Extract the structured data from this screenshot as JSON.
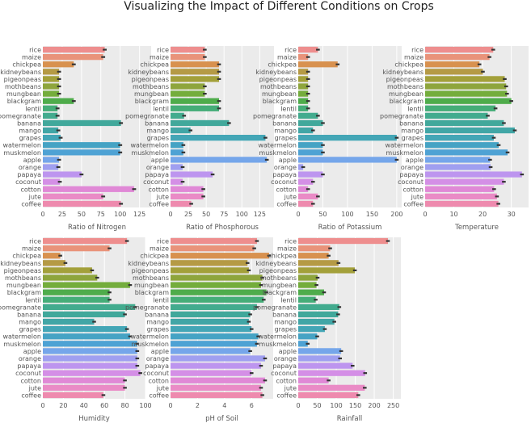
{
  "chart_data": {
    "type": "bar",
    "orientation": "horizontal",
    "title": "Visualizing the Impact of Different Conditions on Crops",
    "categories": [
      "rice",
      "maize",
      "chickpea",
      "kidneybeans",
      "pigeonpeas",
      "mothbeans",
      "mungbean",
      "blackgram",
      "lentil",
      "pomegranate",
      "banana",
      "mango",
      "grapes",
      "watermelon",
      "muskmelon",
      "apple",
      "orange",
      "papaya",
      "coconut",
      "cotton",
      "jute",
      "coffee"
    ],
    "colors": [
      "#ee8e8e",
      "#e9937a",
      "#d8914f",
      "#b59a45",
      "#a3a03a",
      "#8ea53c",
      "#74ad3c",
      "#4fac4b",
      "#45ad78",
      "#42ab8e",
      "#41a89b",
      "#41a6a6",
      "#43a6b6",
      "#45a3c4",
      "#4ea2d4",
      "#75a6ea",
      "#a09ff0",
      "#bd95ef",
      "#d48fe6",
      "#e089d6",
      "#ea8bc6",
      "#ee8aae"
    ],
    "panels": [
      {
        "xlabel": "Ratio of Nitrogen",
        "xlim": [
          0,
          140
        ],
        "ticks": [
          0,
          25,
          50,
          75,
          100,
          125
        ],
        "values": [
          80,
          78,
          40,
          21,
          21,
          21,
          21,
          40,
          19,
          19,
          101,
          20,
          23,
          100,
          100,
          21,
          20,
          50,
          22,
          118,
          78,
          101
        ]
      },
      {
        "xlabel": "Ratio of Phosphorous",
        "xlim": [
          0,
          145
        ],
        "ticks": [
          0,
          25,
          50,
          75,
          100,
          125
        ],
        "values": [
          48,
          48,
          68,
          68,
          68,
          48,
          48,
          68,
          68,
          19,
          82,
          28,
          133,
          18,
          18,
          135,
          17,
          59,
          17,
          46,
          46,
          29
        ]
      },
      {
        "xlabel": "Ratio of Potassium",
        "xlim": [
          0,
          210
        ],
        "ticks": [
          0,
          50,
          100,
          150,
          200
        ],
        "values": [
          40,
          20,
          80,
          20,
          20,
          20,
          20,
          20,
          20,
          40,
          50,
          30,
          200,
          50,
          50,
          200,
          10,
          50,
          30,
          20,
          40,
          30
        ]
      },
      {
        "xlabel": "Temperature",
        "xlim": [
          0,
          36
        ],
        "ticks": [
          0,
          10,
          20,
          30
        ],
        "values": [
          23.7,
          22.4,
          18.9,
          20.1,
          27.7,
          28.2,
          28.5,
          30.0,
          24.5,
          21.8,
          27.4,
          31.2,
          23.9,
          25.6,
          28.7,
          22.6,
          22.8,
          33.7,
          27.4,
          24.0,
          25.0,
          25.5
        ]
      },
      {
        "xlabel": "Humidity",
        "xlim": [
          0,
          100
        ],
        "ticks": [
          0,
          20,
          40,
          60,
          80,
          100
        ],
        "values": [
          82,
          65,
          17,
          22,
          48,
          53,
          85,
          65,
          65,
          90,
          80,
          50,
          82,
          85,
          92,
          92,
          92,
          92,
          95,
          80,
          80,
          59
        ]
      },
      {
        "xlabel": "pH of Soil",
        "xlim": [
          0,
          7.6
        ],
        "ticks": [
          0,
          2,
          4,
          6
        ],
        "values": [
          6.4,
          6.2,
          7.3,
          5.7,
          5.8,
          6.8,
          6.7,
          7.1,
          6.9,
          6.4,
          5.9,
          5.8,
          6.0,
          6.5,
          6.4,
          5.9,
          7.0,
          6.7,
          6.0,
          7.0,
          6.7,
          6.8
        ]
      },
      {
        "xlabel": "Rainfall",
        "xlim": [
          0,
          270
        ],
        "ticks": [
          0,
          50,
          100,
          150,
          200,
          250
        ],
        "values": [
          236,
          84,
          80,
          106,
          149,
          51,
          48,
          68,
          46,
          108,
          105,
          95,
          70,
          50,
          25,
          113,
          110,
          143,
          176,
          80,
          175,
          158
        ]
      }
    ]
  }
}
